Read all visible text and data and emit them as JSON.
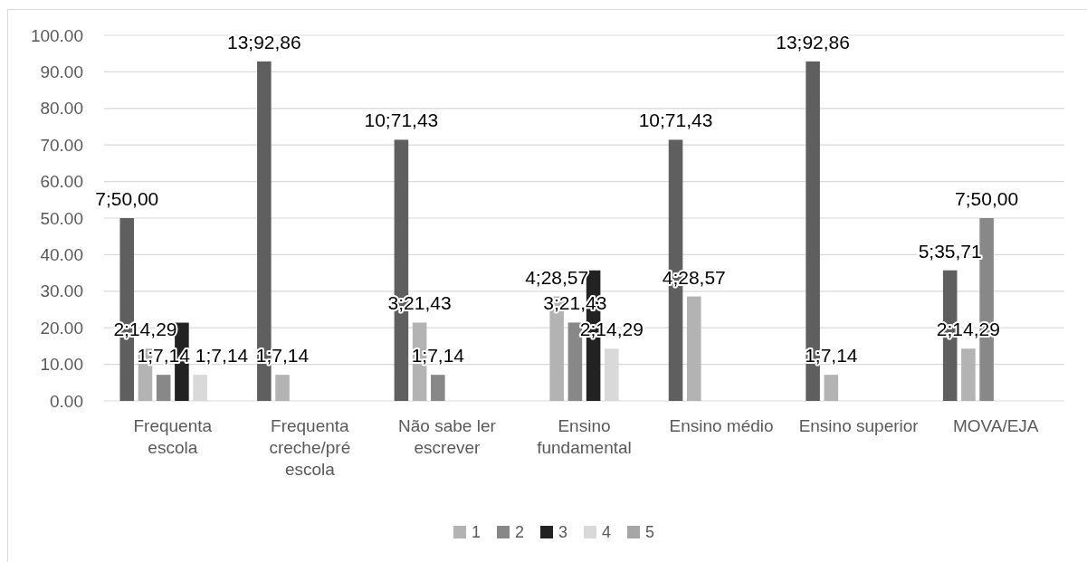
{
  "chart_data": {
    "type": "bar",
    "categories": [
      "Frequenta escola",
      "Frequenta creche/pré escola",
      "Não sabe ler escrever",
      "Ensino fundamental",
      "Ensino médio",
      "Ensino superior",
      "MOVA/EJA"
    ],
    "series": [
      {
        "color": "#5f5f5f",
        "values": [
          50,
          92.86,
          71.43,
          null,
          71.43,
          92.86,
          35.71
        ],
        "value_labels": [
          "7;50,00",
          "13;92,86",
          "10;71,43",
          null,
          "10;71,43",
          "13;92,86",
          "5;35,71"
        ]
      },
      {
        "name": "1",
        "color": "#b3b3b3",
        "values": [
          14.29,
          7.14,
          21.43,
          28.57,
          28.57,
          7.14,
          14.29
        ],
        "value_labels": [
          "2;14,29",
          "1;7,14",
          "3;21,43",
          "4;28,57",
          "4;28,57",
          "1;7,14",
          "2;14,29"
        ]
      },
      {
        "name": "2",
        "color": "#888888",
        "values": [
          7.14,
          null,
          7.14,
          21.43,
          null,
          null,
          50
        ],
        "value_labels": [
          "1;7,14",
          null,
          "1;7,14",
          "3;21,43",
          null,
          null,
          "7;50,00"
        ]
      },
      {
        "name": "3",
        "color": "#222222",
        "values": [
          21.4,
          null,
          null,
          35.7,
          null,
          null,
          null
        ]
      },
      {
        "name": "4",
        "color": "#d9d9d9",
        "values": [
          7.14,
          null,
          null,
          14.29,
          null,
          null,
          null
        ],
        "value_labels": [
          "1;7,14",
          null,
          null,
          "2;14,29",
          null,
          null,
          null
        ]
      },
      {
        "name": "5",
        "color": "#a6a6a6",
        "values": [
          null,
          null,
          null,
          null,
          null,
          null,
          null
        ]
      }
    ],
    "ylim": [
      0,
      100
    ],
    "yticks": [
      {
        "value": 0,
        "label": "0.00"
      },
      {
        "value": 10,
        "label": "10.00"
      },
      {
        "value": 20,
        "label": "20.00"
      },
      {
        "value": 30,
        "label": "30.00"
      },
      {
        "value": 40,
        "label": "40.00"
      },
      {
        "value": 50,
        "label": "50.00"
      },
      {
        "value": 60,
        "label": "60.00"
      },
      {
        "value": 70,
        "label": "70.00"
      },
      {
        "value": 80,
        "label": "80.00"
      },
      {
        "value": 90,
        "label": "90.00"
      },
      {
        "value": 100,
        "label": "100.00"
      }
    ],
    "grid": "y",
    "legend": "bottom"
  }
}
